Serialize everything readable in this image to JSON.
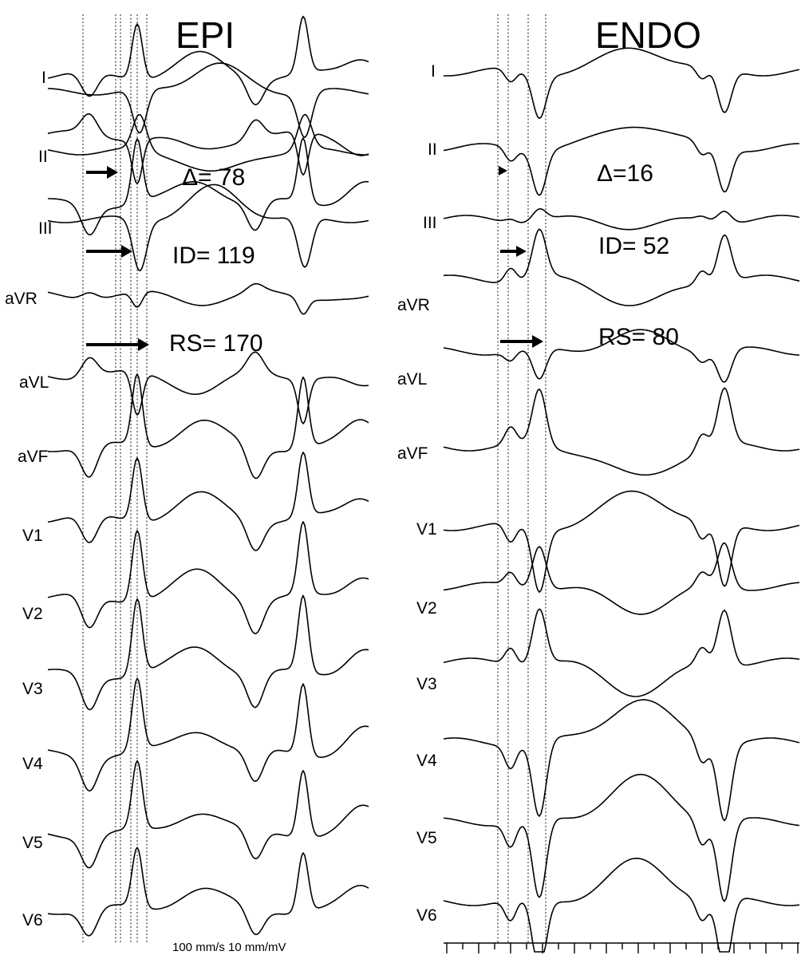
{
  "panels": [
    {
      "title": "EPI",
      "leads": [
        "I",
        "II",
        "III",
        "aVR",
        "aVL",
        "aVF",
        "V1",
        "V2",
        "V3",
        "V4",
        "V5",
        "V6"
      ],
      "measurements": [
        "Δ= 78",
        "ID= 119",
        "RS= 170"
      ],
      "scale_label": "100 mm/s 10 mm/mV"
    },
    {
      "title": "ENDO",
      "leads": [
        "I",
        "II",
        "III",
        "aVR",
        "aVL",
        "aVF",
        "V1",
        "V2",
        "V3",
        "V4",
        "V5",
        "V6"
      ],
      "measurements": [
        "Δ=16",
        "ID= 52",
        "RS= 80"
      ]
    }
  ]
}
